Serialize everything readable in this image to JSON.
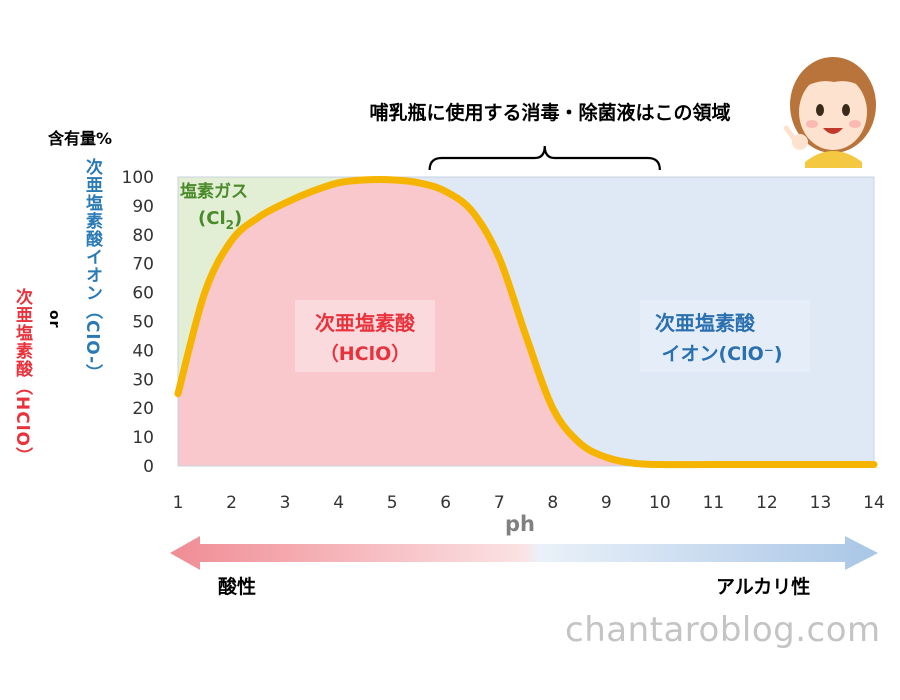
{
  "annotation": "哺乳瓶に使用する消毒・除菌液はこの領域",
  "ylabel_top": "含有量%",
  "ylabel_blue": "次亜塩素酸イオン（ClO-）",
  "ylabel_or": "or",
  "ylabel_red": "次亜塩素酸（HClO）",
  "xlabel": "ph",
  "acid_label": "酸性",
  "alkaline_label": "アルカリ性",
  "watermark": "chantaroblog.com",
  "colors": {
    "cl2_region": "#e2efd4",
    "hclo_region": "#f8c8cd",
    "clo_region": "#dfe8f5",
    "curve": "#f5b400",
    "cl2_text": "#4a8a2a",
    "hclo_text": "#e8323c",
    "clo_text": "#2a6fb0",
    "arrow_red": "#f08c94",
    "arrow_blue": "#a9c6e6"
  },
  "chart_data": {
    "type": "area",
    "xlabel": "ph",
    "ylabel": "含有量%",
    "xlim": [
      1,
      14
    ],
    "ylim": [
      0,
      100
    ],
    "x_ticks": [
      1,
      2,
      3,
      4,
      5,
      6,
      7,
      8,
      9,
      10,
      11,
      12,
      13,
      14
    ],
    "y_ticks": [
      0,
      10,
      20,
      30,
      40,
      50,
      60,
      70,
      80,
      90,
      100
    ],
    "curve": {
      "x": [
        1,
        1.5,
        2,
        2.5,
        3,
        3.5,
        4,
        4.5,
        5,
        5.5,
        6,
        6.5,
        7,
        7.5,
        8,
        8.5,
        9,
        9.5,
        10,
        11,
        12,
        13,
        14
      ],
      "y": [
        25,
        60,
        78,
        86,
        91,
        95,
        98,
        99,
        99,
        98,
        95,
        88,
        72,
        45,
        20,
        8,
        3,
        1,
        0.5,
        0.5,
        0.5,
        0.5,
        0.5
      ]
    },
    "regions": [
      {
        "name": "塩素ガス",
        "formula": "Cl",
        "sub": "2"
      },
      {
        "name": "次亜塩素酸",
        "formula": "（HClO）"
      },
      {
        "name": "次亜塩素酸",
        "name2": "イオン",
        "formula": "(ClO⁻)"
      }
    ],
    "bracket_range": [
      5.7,
      10
    ]
  }
}
